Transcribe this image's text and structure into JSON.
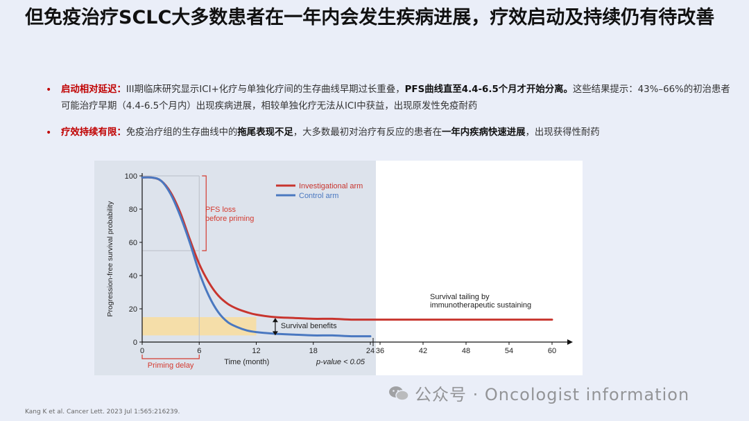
{
  "title": "但免疫治疗SCLC大多数患者在一年内会发生疾病进展，疗效启动及持续仍有待改善",
  "bullets": [
    {
      "lead": "启动相对延迟",
      "colon": "：",
      "text1": "III期临床研究显示ICI+化疗与单独化疗间的生存曲线早期过长重叠，",
      "bold1": "PFS曲线直至4.4-6.5个月才开始分离。",
      "text2": "这些结果提示：43%–66%的初治患者可能治疗早期（4.4-6.5个月内）出现疾病进展，相较单独化疗无法从ICI中获益，出现原发性免疫耐药"
    },
    {
      "lead": "疗效持续有限",
      "colon": "：",
      "text1": "免疫治疗组的生存曲线中的",
      "bold1": "拖尾表现不足",
      "text2": "，大多数最初对治疗有反应的患者在",
      "bold2": "一年内疾病快速进展",
      "text3": "，出现获得性耐药"
    }
  ],
  "chart_data": {
    "type": "line",
    "ylabel": "Progression-free survival probability",
    "xlabel": "Time (month)",
    "x_ticks": [
      "0",
      "6",
      "12",
      "18",
      "24",
      "36",
      "42",
      "48",
      "54",
      "60"
    ],
    "y_ticks": [
      "0",
      "20",
      "40",
      "60",
      "80",
      "100"
    ],
    "ylim": [
      0,
      100
    ],
    "x_axis_break": "24 to 36",
    "series": [
      {
        "name": "Investigational arm",
        "color": "#c8352e",
        "x": [
          0,
          1,
          2,
          3,
          4,
          5,
          6,
          7,
          8,
          9,
          10,
          11,
          12,
          14,
          16,
          18,
          20,
          22,
          24,
          36,
          42,
          48,
          54,
          60
        ],
        "y": [
          99,
          99,
          97,
          90,
          78,
          62,
          47,
          36,
          28,
          23,
          20,
          18,
          16.5,
          15,
          14.5,
          14,
          14,
          13.5,
          13.5,
          13.5,
          13.5,
          13.5,
          13.5,
          13.5
        ]
      },
      {
        "name": "Control arm",
        "color": "#4a78c0",
        "x": [
          0,
          1,
          2,
          3,
          4,
          5,
          6,
          7,
          8,
          9,
          10,
          11,
          12,
          14,
          16,
          18,
          20,
          22,
          24
        ],
        "y": [
          99,
          99,
          97,
          89,
          76,
          60,
          42,
          28,
          18,
          12,
          9,
          7,
          6,
          5,
          4.5,
          4,
          4,
          3.5,
          3.5
        ]
      }
    ],
    "annotations": {
      "pfs_loss": "PFS loss\nbefore priming",
      "survival_benefits": "Survival benefits",
      "survival_tailing": "Survival tailing by\nimmunotherapeutic sustaining",
      "priming_delay": "Priming delay",
      "p_value": "p-value < 0.05"
    },
    "colors": {
      "shaded_region": "#dde3ec",
      "benefit_band": "#f5dea9",
      "accent_red": "#d43a2f"
    }
  },
  "citation": "Kang K et al. Cancer Lett. 2023 Jul 1:565:216239.",
  "watermark": "公众号 · Oncologist information"
}
